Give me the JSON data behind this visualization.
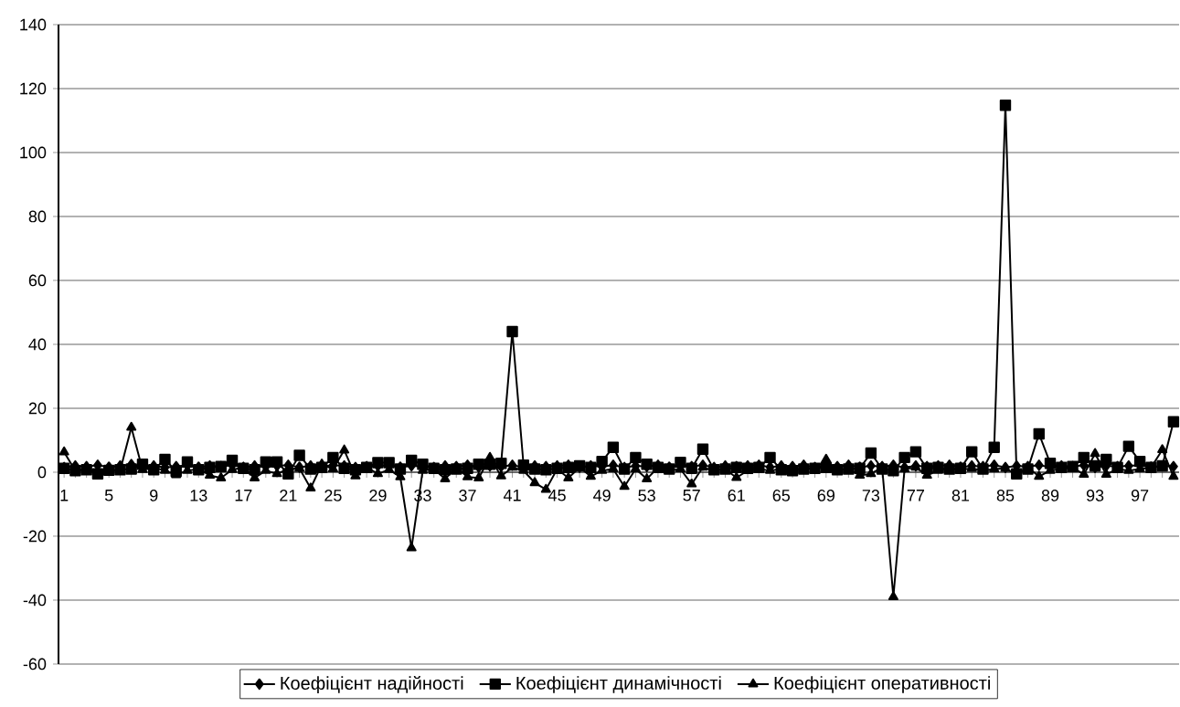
{
  "chart_data": {
    "type": "line",
    "categories": [
      "1",
      null,
      null,
      null,
      "5",
      null,
      null,
      null,
      "9",
      null,
      null,
      null,
      "13",
      null,
      null,
      null,
      "17",
      null,
      null,
      null,
      "21",
      null,
      null,
      null,
      "25",
      null,
      null,
      null,
      "29",
      null,
      null,
      null,
      "33",
      null,
      null,
      null,
      "37",
      null,
      null,
      null,
      "41",
      null,
      null,
      null,
      "45",
      null,
      null,
      null,
      "49",
      null,
      null,
      null,
      "53",
      null,
      null,
      null,
      "57",
      null,
      null,
      null,
      "61",
      null,
      null,
      null,
      "65",
      null,
      null,
      null,
      "69",
      null,
      null,
      null,
      "73",
      null,
      null,
      null,
      "77",
      null,
      null,
      null,
      "81",
      null,
      null,
      null,
      "85",
      null,
      null,
      null,
      "89",
      null,
      null,
      null,
      "93",
      null,
      null,
      null,
      "97",
      null,
      null,
      null
    ],
    "series": [
      {
        "name": "Коефіцієнт надійності",
        "color": "#000000",
        "marker": "diamond",
        "values": [
          1.5,
          2.0,
          1.8,
          2.2,
          1.6,
          2.0,
          2.4,
          1.8,
          2.0,
          1.5,
          1.8,
          2.2,
          1.6,
          2.0,
          1.8,
          2.2,
          1.5,
          2.0,
          1.8,
          2.0,
          2.2,
          1.6,
          2.0,
          1.8,
          2.2,
          2.0,
          1.5,
          1.8,
          2.0,
          2.2,
          1.6,
          2.0,
          1.8,
          1.5,
          2.0,
          1.8,
          2.2,
          1.6,
          2.0,
          1.8,
          2.2,
          1.5,
          2.0,
          1.8,
          2.0,
          2.2,
          1.6,
          2.0,
          1.8,
          2.2,
          1.5,
          2.0,
          1.8,
          2.2,
          1.6,
          2.0,
          1.8,
          2.2,
          1.5,
          2.0,
          1.8,
          2.0,
          2.2,
          1.6,
          2.0,
          1.8,
          2.2,
          1.5,
          2.0,
          1.8,
          2.2,
          1.6,
          2.0,
          1.8,
          2.2,
          1.5,
          2.0,
          1.8,
          2.0,
          2.2,
          1.6,
          2.0,
          1.8,
          2.2,
          1.5,
          2.0,
          1.8,
          2.2,
          1.6,
          2.0,
          1.8,
          2.2,
          1.5,
          2.0,
          1.8,
          2.0,
          2.2,
          1.6,
          2.0,
          1.8
        ]
      },
      {
        "name": "Коефіцієнт динамічності",
        "color": "#000000",
        "marker": "square",
        "values": [
          1.2,
          0.5,
          0.8,
          -0.5,
          0.6,
          0.8,
          1.0,
          2.5,
          0.8,
          4,
          0.3,
          3.2,
          0.8,
          1.5,
          1.8,
          3.7,
          1.2,
          0.8,
          3.2,
          3.2,
          -0.5,
          5.3,
          1.0,
          1.5,
          4.6,
          1.2,
          0.8,
          1.5,
          3,
          3,
          1.0,
          3.7,
          2.5,
          1.2,
          0.8,
          1.0,
          1.2,
          2.5,
          2.5,
          2.8,
          44,
          2.2,
          1.0,
          0.8,
          1.2,
          1.5,
          2.0,
          1.5,
          3.4,
          7.8,
          1.0,
          4.6,
          2.5,
          1.5,
          1.0,
          3.1,
          1.2,
          7.2,
          0.8,
          1.0,
          1.5,
          1.2,
          1.5,
          4.6,
          0.8,
          0.5,
          1.0,
          1.2,
          1.5,
          0.8,
          1.0,
          1.2,
          6,
          1.0,
          0.5,
          4.6,
          6.4,
          1.2,
          1.5,
          1.0,
          1.2,
          6.4,
          1.0,
          7.8,
          114.8,
          -0.5,
          1.0,
          12,
          2.8,
          1.5,
          1.8,
          4.6,
          2.0,
          4,
          1.5,
          8.1,
          3.4,
          1.5,
          2.0,
          15.8
        ]
      },
      {
        "name": "Коефіцієнт оперативності",
        "color": "#000000",
        "marker": "triangle",
        "values": [
          6.3,
          0.5,
          1.0,
          0.3,
          0.8,
          0.5,
          14,
          0.8,
          1.5,
          0.5,
          -0.8,
          0.5,
          1.0,
          -1.0,
          -1.8,
          0.8,
          1.5,
          -1.8,
          0.5,
          -0.5,
          1.0,
          1.2,
          -5,
          2.5,
          1.0,
          6.9,
          -1.2,
          1.5,
          -0.5,
          0.8,
          -1.5,
          -23.7,
          0.5,
          1.0,
          -2.1,
          1.5,
          -1.5,
          -1.8,
          4.6,
          -1.2,
          1.5,
          0.5,
          -3.3,
          -5.4,
          1.0,
          -1.8,
          1.5,
          -1.3,
          0.5,
          1.0,
          -4.5,
          1.0,
          -2.1,
          1.5,
          0.5,
          1.0,
          -3.7,
          1.5,
          0.5,
          1.0,
          -1.7,
          0.5,
          1.0,
          0.5,
          1.0,
          0.8,
          1.2,
          1.0,
          4,
          0.5,
          1.0,
          -1.0,
          -0.5,
          1.5,
          -39,
          1.0,
          1.5,
          -1.0,
          0.5,
          1.0,
          0.8,
          1.2,
          0.5,
          1.0,
          1.2,
          -0.7,
          1.5,
          -1.3,
          0.5,
          1.0,
          1.5,
          -0.7,
          5.8,
          -0.7,
          1.0,
          0.5,
          1.0,
          1.5,
          7,
          -1.3
        ]
      }
    ],
    "ylim": [
      -60,
      140
    ],
    "yticks": [
      -60,
      -40,
      -20,
      0,
      20,
      40,
      60,
      80,
      100,
      120,
      140
    ],
    "grid": "y",
    "legend": "bottom",
    "line_style": "solid"
  }
}
